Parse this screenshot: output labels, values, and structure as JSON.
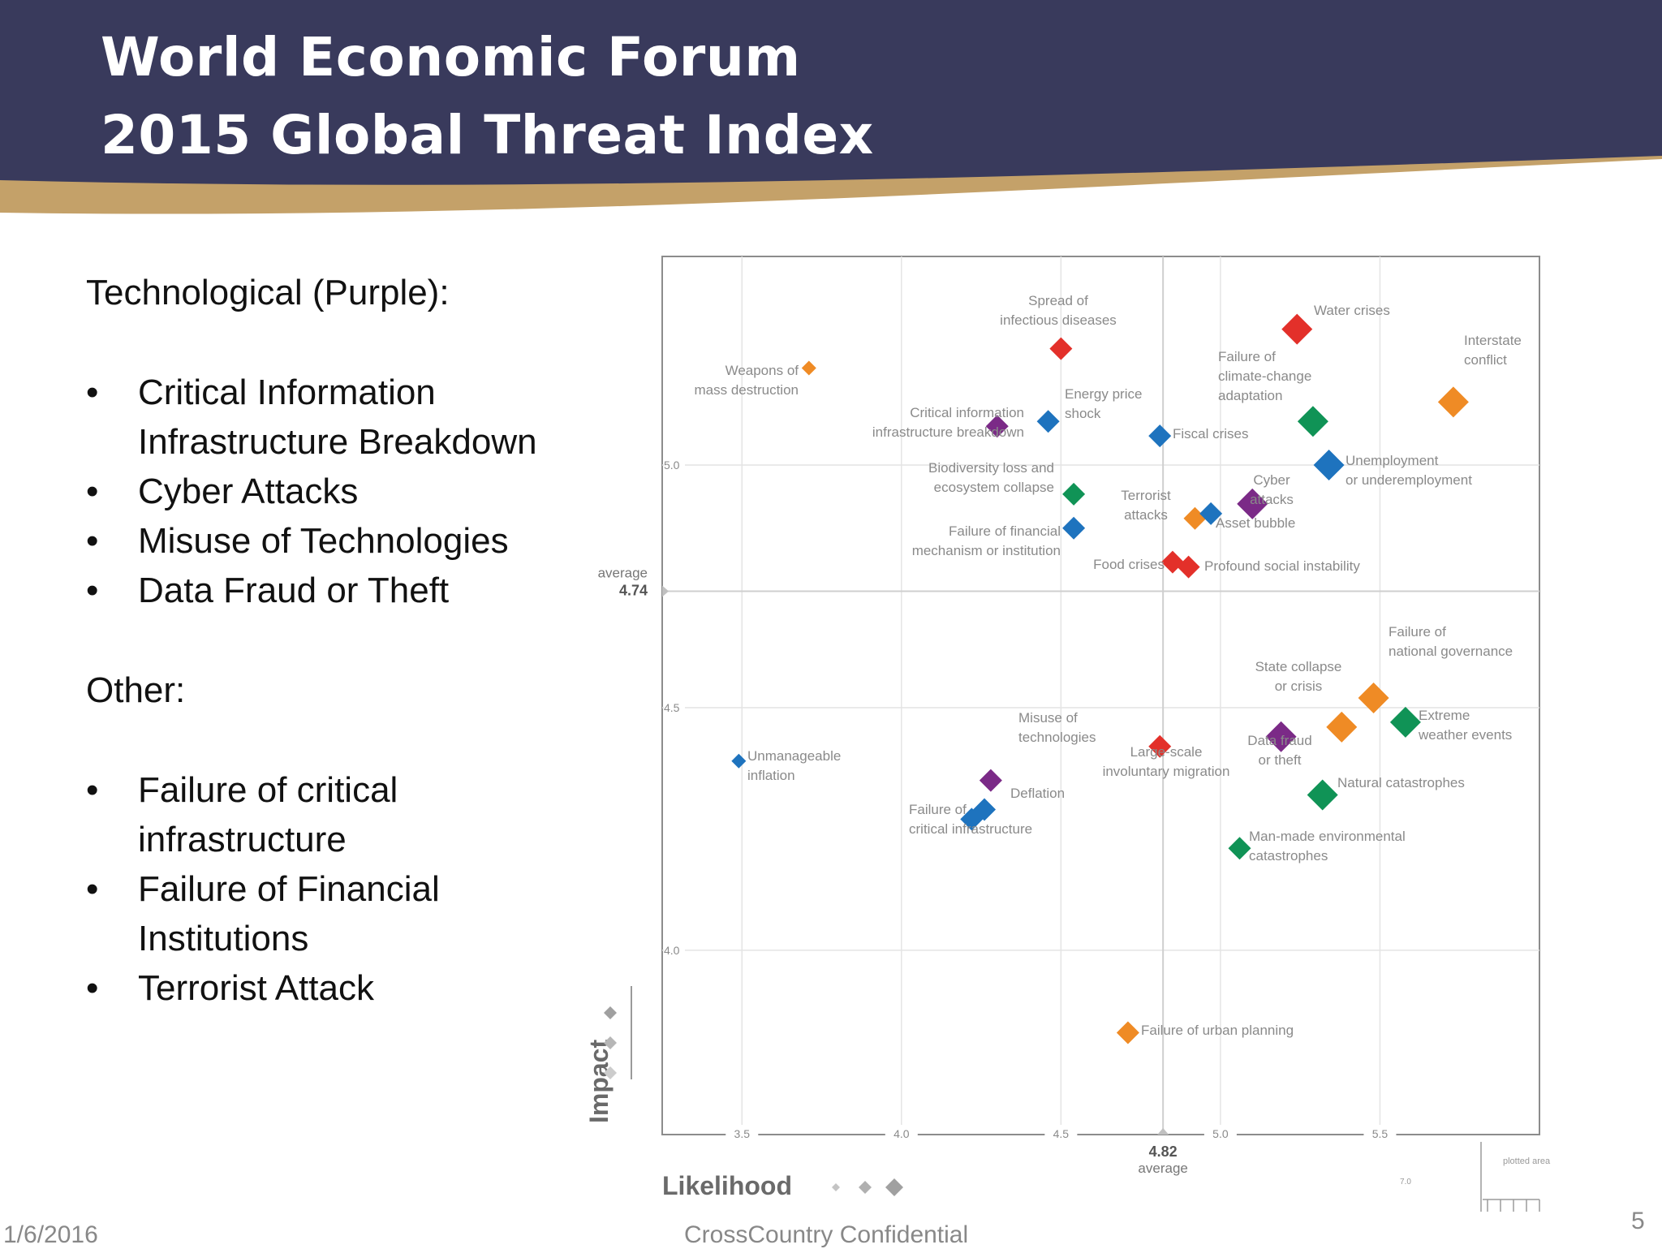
{
  "header": {
    "title_line1": "World Economic Forum",
    "title_line2": "2015 Global Threat Index",
    "navy": "#393a5c",
    "gold": "#c4a169"
  },
  "left_panel": {
    "tech_heading": "Technological (Purple):",
    "tech_items": [
      "Critical Information Infrastructure Breakdown",
      "Cyber Attacks",
      "Misuse of Technologies",
      "Data Fraud or Theft"
    ],
    "other_heading": "Other:",
    "other_items": [
      "Failure of critical infrastructure",
      "Failure of Financial Institutions",
      "Terrorist Attack"
    ]
  },
  "colors": {
    "economic": "#1e73be",
    "environmental": "#109356",
    "geopolitical": "#ef8b25",
    "societal": "#e3302a",
    "technological": "#7b2a87"
  },
  "chart_data": {
    "type": "scatter",
    "xlabel": "Likelihood",
    "ylabel": "Impact",
    "xlim": [
      3.25,
      6.0
    ],
    "ylim": [
      3.62,
      5.43
    ],
    "x_ticks": [
      "3.5",
      "4.0",
      "4.5",
      "5.0",
      "5.5"
    ],
    "y_ticks": [
      "4.0",
      "4.5",
      "5.0"
    ],
    "x_average": {
      "value": 4.82,
      "value_label": "4.82",
      "label": "average"
    },
    "y_average": {
      "value": 4.74,
      "value_label": "4.74",
      "label": "average"
    },
    "legend_note": "plotted area",
    "legend_note_value": "7.0",
    "points": [
      {
        "label": "Weapons of mass destruction",
        "x": 3.71,
        "y": 5.2,
        "category": "geopolitical",
        "size": "s"
      },
      {
        "label": "Spread of infectious diseases",
        "x": 4.5,
        "y": 5.24,
        "category": "societal",
        "size": "m"
      },
      {
        "label": "Water crises",
        "x": 5.24,
        "y": 5.28,
        "category": "societal",
        "size": "l"
      },
      {
        "label": "Interstate conflict",
        "x": 5.73,
        "y": 5.13,
        "category": "geopolitical",
        "size": "l"
      },
      {
        "label": "Failure of climate-change adaptation",
        "x": 5.29,
        "y": 5.09,
        "category": "environmental",
        "size": "l"
      },
      {
        "label": "Critical information infrastructure breakdown",
        "x": 4.3,
        "y": 5.08,
        "category": "technological",
        "size": "m"
      },
      {
        "label": "Energy price shock",
        "x": 4.46,
        "y": 5.09,
        "category": "economic",
        "size": "m"
      },
      {
        "label": "Fiscal crises",
        "x": 4.81,
        "y": 5.06,
        "category": "economic",
        "size": "m"
      },
      {
        "label": "Unemployment or underemployment",
        "x": 5.34,
        "y": 5.0,
        "category": "economic",
        "size": "l"
      },
      {
        "label": "Biodiversity loss and ecosystem collapse",
        "x": 4.54,
        "y": 4.94,
        "category": "environmental",
        "size": "m"
      },
      {
        "label": "Cyber attacks",
        "x": 5.1,
        "y": 4.92,
        "category": "technological",
        "size": "l"
      },
      {
        "label": "Terrorist attacks",
        "x": 4.92,
        "y": 4.89,
        "category": "geopolitical",
        "size": "m"
      },
      {
        "label": "Asset bubble",
        "x": 4.97,
        "y": 4.9,
        "category": "economic",
        "size": "m"
      },
      {
        "label": "Failure of financial mechanism or institution",
        "x": 4.54,
        "y": 4.87,
        "category": "economic",
        "size": "m"
      },
      {
        "label": "Food crises",
        "x": 4.85,
        "y": 4.8,
        "category": "societal",
        "size": "m"
      },
      {
        "label": "Profound social instability",
        "x": 4.9,
        "y": 4.79,
        "category": "societal",
        "size": "m"
      },
      {
        "label": "Failure of national governance",
        "x": 5.48,
        "y": 4.52,
        "category": "geopolitical",
        "size": "l"
      },
      {
        "label": "State collapse or crisis",
        "x": 5.38,
        "y": 4.46,
        "category": "geopolitical",
        "size": "l"
      },
      {
        "label": "Extreme weather events",
        "x": 5.58,
        "y": 4.47,
        "category": "environmental",
        "size": "l"
      },
      {
        "label": "Data fraud or theft",
        "x": 5.19,
        "y": 4.44,
        "category": "technological",
        "size": "l"
      },
      {
        "label": "Unmanageable inflation",
        "x": 3.49,
        "y": 4.39,
        "category": "economic",
        "size": "s"
      },
      {
        "label": "Large-scale involuntary migration",
        "x": 4.81,
        "y": 4.42,
        "category": "societal",
        "size": "m"
      },
      {
        "label": "Misuse of technologies",
        "x": 4.28,
        "y": 4.35,
        "category": "technological",
        "size": "m"
      },
      {
        "label": "Natural catastrophes",
        "x": 5.32,
        "y": 4.32,
        "category": "environmental",
        "size": "l"
      },
      {
        "label": "Deflation",
        "x": 4.26,
        "y": 4.29,
        "category": "economic",
        "size": "m"
      },
      {
        "label": "Failure of critical infrastructure",
        "x": 4.22,
        "y": 4.27,
        "category": "economic",
        "size": "m"
      },
      {
        "label": "Man-made environmental catastrophes",
        "x": 5.06,
        "y": 4.21,
        "category": "environmental",
        "size": "m"
      },
      {
        "label": "Failure of urban planning",
        "x": 4.71,
        "y": 3.83,
        "category": "geopolitical",
        "size": "m"
      }
    ]
  }
}
